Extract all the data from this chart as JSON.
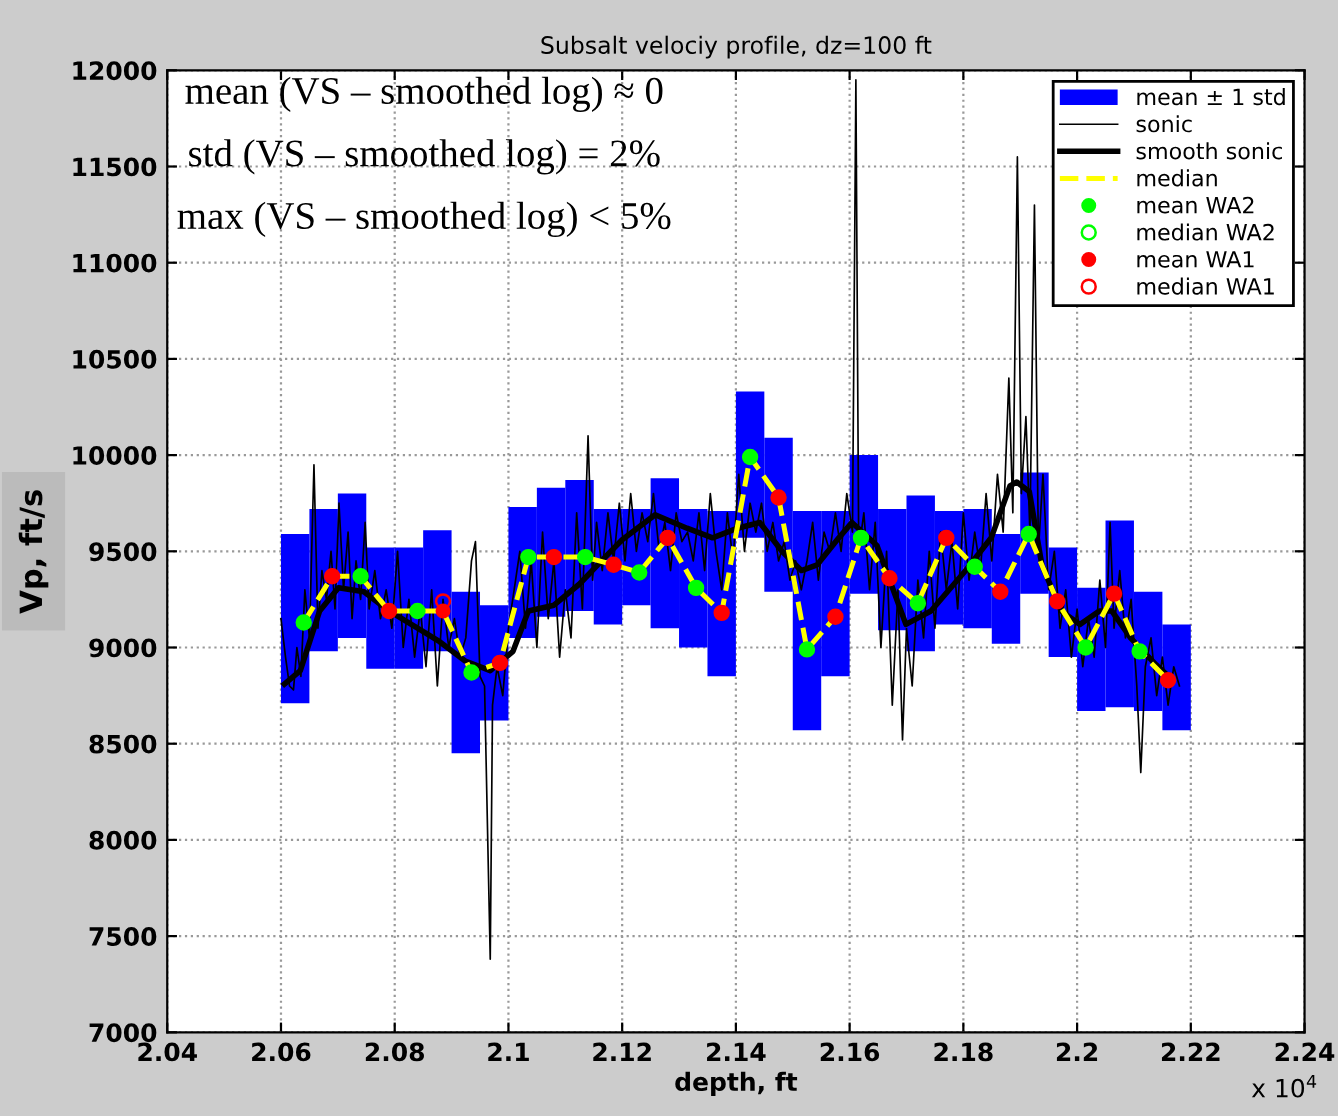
{
  "chart_data": {
    "type": "line",
    "title": "Subsalt velociy profile, dz=100 ft",
    "xlabel": "depth, ft",
    "ylabel": "Vp, ft/s",
    "annotations": [
      "mean (VS – smoothed log) ≈ 0",
      "std (VS – smoothed log) = 2%",
      "max (VS – smoothed log) < 5%",
      "x 10$^{4}$"
    ],
    "xlim": [
      2.04,
      2.24
    ],
    "ylim": [
      7000,
      12000
    ],
    "xticks": [
      2.04,
      2.06,
      2.08,
      2.1,
      2.12,
      2.14,
      2.16,
      2.18,
      2.2,
      2.22,
      2.24
    ],
    "yticks": [
      7000,
      7500,
      8000,
      8500,
      9000,
      9500,
      10000,
      10500,
      11000,
      11500,
      12000
    ],
    "grid": true,
    "legend": "top right",
    "series": [
      {
        "name": "mean ± 1 std",
        "type": "bar",
        "color": "#0000ff",
        "x": [
          2.0625,
          2.0675,
          2.0725,
          2.0775,
          2.0825,
          2.0875,
          2.0925,
          2.0975,
          2.1025,
          2.1075,
          2.1125,
          2.1175,
          2.1225,
          2.1275,
          2.1325,
          2.1375,
          2.1425,
          2.1475,
          2.1525,
          2.1575,
          2.1625,
          2.1675,
          2.1725,
          2.1775,
          2.1825,
          2.1875,
          2.1925,
          2.1975,
          2.2025,
          2.2075,
          2.2125,
          2.2175
        ],
        "base": [
          8710,
          8980,
          9050,
          8890,
          8890,
          8980,
          8450,
          8620,
          9050,
          9160,
          9190,
          9120,
          9220,
          9100,
          9000,
          8850,
          9570,
          9290,
          8570,
          8850,
          9280,
          9090,
          8980,
          9120,
          9100,
          9020,
          9280,
          8950,
          8670,
          8690,
          8670,
          8570
        ],
        "values": [
          880,
          740,
          750,
          630,
          630,
          630,
          840,
          600,
          680,
          670,
          680,
          600,
          500,
          780,
          720,
          860,
          760,
          800,
          1140,
          860,
          720,
          630,
          810,
          590,
          620,
          570,
          630,
          570,
          640,
          970,
          620,
          550
        ]
      },
      {
        "name": "sonic",
        "color": "#000000",
        "line_style": "solid",
        "marker": "none",
        "x": [
          2.06,
          2.0608,
          2.0615,
          2.0622,
          2.0628,
          2.0635,
          2.0642,
          2.065,
          2.0658,
          2.0665,
          2.0672,
          2.068,
          2.0688,
          2.0695,
          2.0702,
          2.071,
          2.0718,
          2.0725,
          2.0732,
          2.074,
          2.0748,
          2.0755,
          2.0765,
          2.0775,
          2.0785,
          2.0795,
          2.0805,
          2.0815,
          2.0825,
          2.0835,
          2.0845,
          2.0855,
          2.0865,
          2.0875,
          2.0885,
          2.0895,
          2.0905,
          2.0915,
          2.0925,
          2.0935,
          2.0942,
          2.095,
          2.0958,
          2.0965,
          2.0968,
          2.0972,
          2.098,
          2.099,
          2.1,
          2.101,
          2.102,
          2.103,
          2.104,
          2.105,
          2.106,
          2.107,
          2.108,
          2.109,
          2.11,
          2.111,
          2.112,
          2.113,
          2.114,
          2.1148,
          2.1155,
          2.1165,
          2.1175,
          2.1185,
          2.1195,
          2.1205,
          2.1215,
          2.1225,
          2.1235,
          2.1245,
          2.1255,
          2.1265,
          2.1275,
          2.1285,
          2.1295,
          2.1305,
          2.1315,
          2.1325,
          2.1335,
          2.1345,
          2.1355,
          2.1365,
          2.1375,
          2.1385,
          2.1395,
          2.1405,
          2.1415,
          2.1425,
          2.1435,
          2.1445,
          2.1455,
          2.1465,
          2.1475,
          2.1485,
          2.1495,
          2.1505,
          2.1515,
          2.1525,
          2.1535,
          2.1545,
          2.1555,
          2.1565,
          2.1575,
          2.1585,
          2.1595,
          2.1605,
          2.1611,
          2.1616,
          2.1625,
          2.1635,
          2.1645,
          2.1655,
          2.1665,
          2.1675,
          2.1685,
          2.1693,
          2.17,
          2.171,
          2.172,
          2.173,
          2.174,
          2.175,
          2.176,
          2.177,
          2.178,
          2.179,
          2.18,
          2.181,
          2.182,
          2.183,
          2.184,
          2.185,
          2.186,
          2.187,
          2.188,
          2.1887,
          2.1895,
          2.1902,
          2.191,
          2.1917,
          2.1925,
          2.1932,
          2.194,
          2.195,
          2.196,
          2.197,
          2.198,
          2.199,
          2.2,
          2.201,
          2.202,
          2.203,
          2.204,
          2.205,
          2.2058,
          2.2065,
          2.2075,
          2.2085,
          2.2095,
          2.2105,
          2.2112,
          2.212,
          2.213,
          2.214,
          2.215,
          2.216,
          2.217,
          2.218
        ],
        "values": [
          9150,
          8950,
          8800,
          8780,
          9000,
          8850,
          9300,
          9050,
          9950,
          9100,
          9400,
          9250,
          9500,
          9200,
          9750,
          9300,
          9600,
          9150,
          9450,
          9250,
          9650,
          9200,
          9400,
          9150,
          9300,
          9100,
          9500,
          9000,
          9250,
          8950,
          9200,
          8900,
          9300,
          8800,
          9250,
          9000,
          9150,
          8950,
          9050,
          9450,
          9550,
          8850,
          8800,
          7800,
          7380,
          8700,
          8900,
          8750,
          9100,
          9300,
          9500,
          9100,
          9450,
          9000,
          9600,
          9150,
          9450,
          8950,
          9300,
          9050,
          9700,
          9200,
          10100,
          9350,
          9650,
          9400,
          9700,
          9450,
          9750,
          9450,
          9800,
          9500,
          9700,
          9550,
          9800,
          9500,
          9650,
          9400,
          9700,
          9550,
          9600,
          9450,
          9700,
          9400,
          9800,
          9500,
          9300,
          9700,
          9450,
          9900,
          9500,
          9750,
          9600,
          9750,
          9500,
          9650,
          9450,
          9550,
          9350,
          9450,
          9300,
          9450,
          9650,
          9350,
          9600,
          9500,
          9700,
          9500,
          9800,
          9600,
          11950,
          9500,
          9700,
          9300,
          9650,
          9000,
          9500,
          8700,
          9300,
          8520,
          9100,
          8800,
          9350,
          9050,
          9500,
          9100,
          9600,
          9300,
          9550,
          9200,
          9700,
          9350,
          9600,
          9400,
          9800,
          9450,
          9900,
          9600,
          10400,
          9700,
          11550,
          9800,
          10200,
          9600,
          11300,
          9500,
          9900,
          9300,
          9500,
          9100,
          9300,
          8950,
          9200,
          8900,
          9150,
          8950,
          9350,
          9000,
          9650,
          9100,
          9400,
          9050,
          9250,
          8800,
          8350,
          8900,
          9050,
          8750,
          8950,
          8700,
          8900,
          8800
        ]
      },
      {
        "name": "smooth sonic",
        "color": "#000000",
        "line_style": "solid",
        "marker": "none",
        "x": [
          2.0606,
          2.0634,
          2.0668,
          2.0701,
          2.0746,
          2.079,
          2.0846,
          2.0879,
          2.0924,
          2.0968,
          2.1008,
          2.1035,
          2.108,
          2.1125,
          2.117,
          2.12,
          2.1258,
          2.1314,
          2.1359,
          2.1403,
          2.1442,
          2.1481,
          2.1515,
          2.1543,
          2.1581,
          2.1604,
          2.1648,
          2.1699,
          2.1743,
          2.1804,
          2.1849,
          2.1882,
          2.1894,
          2.1916,
          2.1938,
          2.1972,
          2.2005,
          2.2039,
          2.2061,
          2.2094,
          2.2139,
          2.2161
        ],
        "values": [
          8810,
          8880,
          9190,
          9310,
          9290,
          9190,
          9090,
          9030,
          8930,
          8880,
          8980,
          9190,
          9220,
          9330,
          9470,
          9560,
          9690,
          9620,
          9570,
          9620,
          9650,
          9500,
          9400,
          9430,
          9570,
          9650,
          9530,
          9120,
          9190,
          9400,
          9570,
          9840,
          9860,
          9810,
          9430,
          9190,
          9120,
          9190,
          9190,
          9050,
          8910,
          8850
        ]
      },
      {
        "name": "median",
        "color": "#ffff00",
        "line_style": "dashed",
        "marker": "none",
        "x": [
          2.064,
          2.069,
          2.074,
          2.079,
          2.084,
          2.0885,
          2.0935,
          2.0985,
          2.1035,
          2.108,
          2.1135,
          2.1185,
          2.123,
          2.128,
          2.133,
          2.1375,
          2.1425,
          2.1475,
          2.1525,
          2.1575,
          2.162,
          2.167,
          2.172,
          2.177,
          2.182,
          2.1865,
          2.1915,
          2.1965,
          2.2015,
          2.2065,
          2.211,
          2.216
        ],
        "values": [
          9130,
          9370,
          9370,
          9190,
          9190,
          9190,
          8870,
          8920,
          9470,
          9470,
          9470,
          9430,
          9390,
          9570,
          9310,
          9180,
          9990,
          9780,
          8990,
          9160,
          9570,
          9360,
          9230,
          9570,
          9420,
          9290,
          9590,
          9240,
          9000,
          9280,
          8980,
          8830
        ]
      },
      {
        "name": "mean WA2",
        "type": "scatter",
        "color": "#00ff00",
        "marker": "circle",
        "x": [
          2.064,
          2.074,
          2.084,
          2.0935,
          2.1035,
          2.1135,
          2.123,
          2.133,
          2.1425,
          2.1525,
          2.162,
          2.172,
          2.182,
          2.1915,
          2.2015,
          2.211
        ],
        "values": [
          9130,
          9370,
          9190,
          8870,
          9470,
          9470,
          9390,
          9310,
          9990,
          8990,
          9570,
          9230,
          9420,
          9590,
          9000,
          8980
        ]
      },
      {
        "name": "median WA2",
        "type": "scatter",
        "color": "#00ff00",
        "marker": "circle",
        "x": [
          2.064,
          2.074,
          2.084,
          2.0935,
          2.1035,
          2.1135,
          2.123,
          2.133,
          2.1425,
          2.1525,
          2.162,
          2.172,
          2.182,
          2.1915,
          2.2015,
          2.211
        ],
        "values": [
          9130,
          9370,
          9190,
          8870,
          9470,
          9470,
          9390,
          9310,
          9990,
          8990,
          9570,
          9230,
          9420,
          9590,
          9000,
          8980
        ]
      },
      {
        "name": "mean WA1",
        "type": "scatter",
        "color": "#ff0000",
        "marker": "circle",
        "x": [
          2.069,
          2.079,
          2.0885,
          2.0985,
          2.108,
          2.1185,
          2.128,
          2.1375,
          2.1475,
          2.1575,
          2.167,
          2.177,
          2.1865,
          2.1965,
          2.2065,
          2.216
        ],
        "values": [
          9370,
          9190,
          9190,
          8920,
          9470,
          9430,
          9570,
          9180,
          9780,
          9160,
          9360,
          9570,
          9290,
          9240,
          9280,
          8830
        ]
      },
      {
        "name": "median WA1",
        "type": "scatter",
        "color": "#ff0000",
        "marker": "circle",
        "x": [
          2.069,
          2.079,
          2.0885,
          2.0985,
          2.108,
          2.1185,
          2.128,
          2.1375,
          2.1475,
          2.1575,
          2.167,
          2.177,
          2.1865,
          2.1965,
          2.2065,
          2.216
        ],
        "values": [
          9370,
          9190,
          9240,
          8920,
          9470,
          9430,
          9570,
          9180,
          9780,
          9160,
          9360,
          9570,
          9290,
          9240,
          9280,
          8830
        ]
      }
    ]
  }
}
